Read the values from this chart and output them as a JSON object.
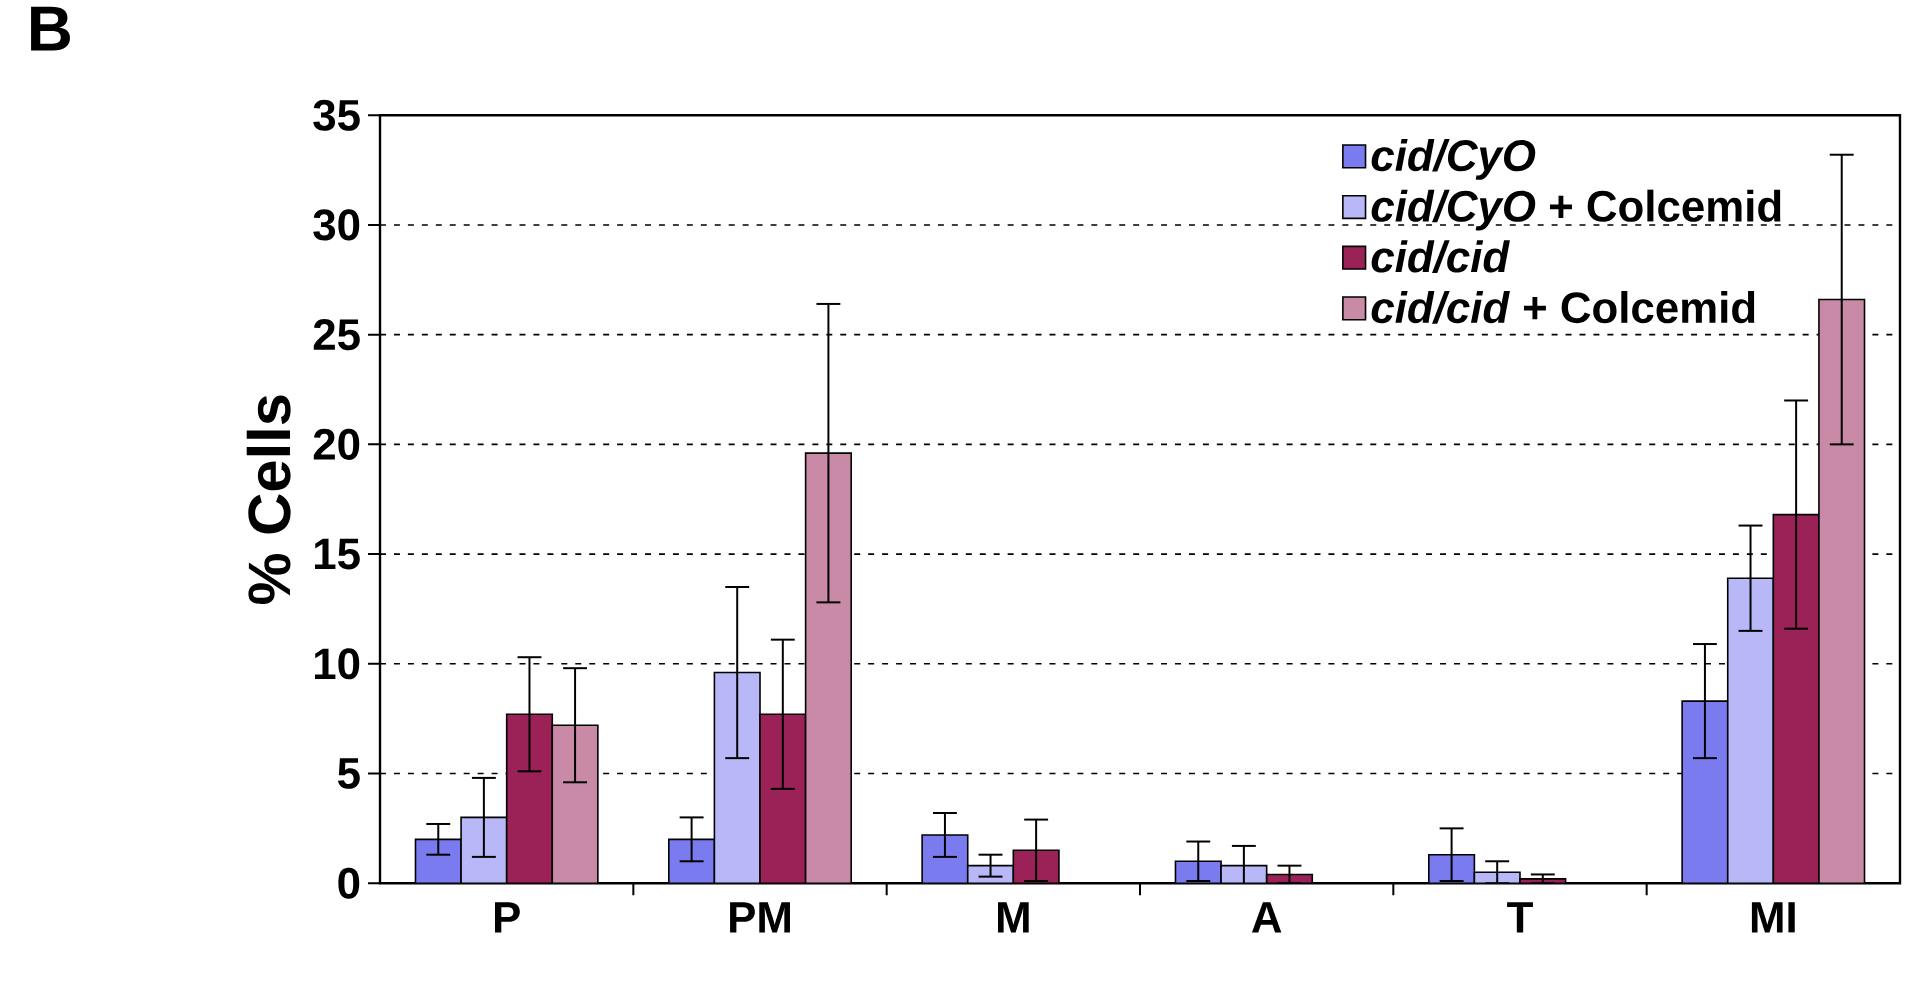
{
  "chart_data": {
    "type": "bar",
    "title": "B",
    "ylabel": "% Cells",
    "categories": [
      "P",
      "PM",
      "M",
      "A",
      "T",
      "MI"
    ],
    "series": [
      {
        "name": "*cid/CyO*",
        "color": "#7b7bf0",
        "values": [
          2.0,
          2.0,
          2.2,
          1.0,
          1.3,
          8.3
        ],
        "errors": [
          0.7,
          1.0,
          1.0,
          0.9,
          1.2,
          2.6
        ]
      },
      {
        "name": "*cid/CyO* + Colcemid",
        "color": "#b8b8f8",
        "values": [
          3.0,
          9.6,
          0.8,
          0.8,
          0.5,
          13.9
        ],
        "errors": [
          1.8,
          3.9,
          0.5,
          0.9,
          0.5,
          2.4
        ]
      },
      {
        "name": "*cid/cid*",
        "color": "#9b2257",
        "values": [
          7.7,
          7.7,
          1.5,
          0.4,
          0.2,
          16.8
        ],
        "errors": [
          2.6,
          3.4,
          1.4,
          0.4,
          0.2,
          5.2
        ]
      },
      {
        "name": "*cid/cid* + Colcemid",
        "color": "#c88aa6",
        "values": [
          7.2,
          19.6,
          0,
          0,
          0,
          26.6
        ],
        "errors": [
          2.6,
          6.8,
          null,
          null,
          null,
          6.6
        ]
      }
    ],
    "ylim": [
      0,
      35
    ],
    "yticks": [
      0,
      5,
      10,
      15,
      20,
      25,
      30,
      35
    ],
    "grid": "y",
    "legend": "top right"
  }
}
